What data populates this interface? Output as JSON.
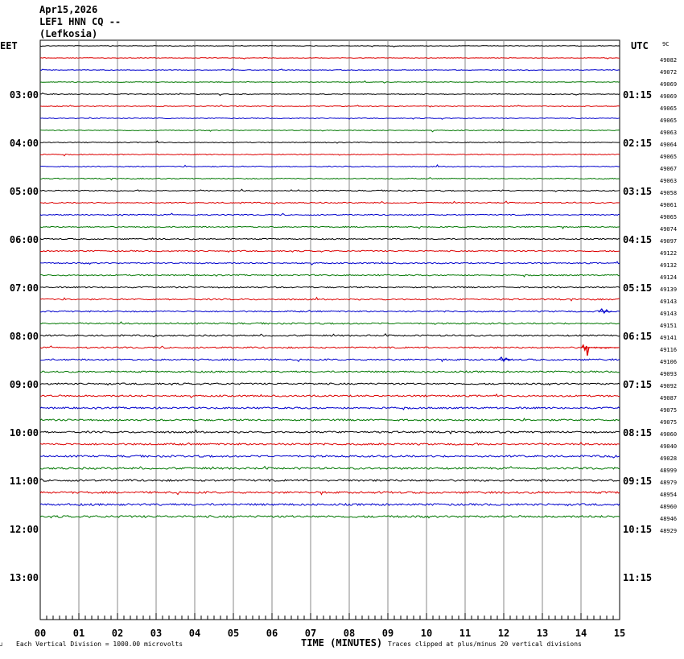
{
  "header": {
    "date": "Apr15,2026",
    "station": "LEF1 HNN CQ --",
    "location": "(Lefkosia)"
  },
  "left_zone_label": "EET",
  "right_zone_label": "UTC",
  "scale_header": "9C",
  "footer": {
    "scale_note": "Each Vertical Division = 1000.00 microvolts",
    "corner_mark": "┘",
    "clip_note": "Traces clipped at plus/minus 20 vertical divisions"
  },
  "chart_data": {
    "type": "line",
    "title": "",
    "xlabel": "TIME (MINUTES)",
    "ylabel": "",
    "xlim": [
      0,
      15
    ],
    "x_tick_labels": [
      "00",
      "01",
      "02",
      "03",
      "04",
      "05",
      "06",
      "07",
      "08",
      "09",
      "10",
      "11",
      "12",
      "13",
      "14",
      "15"
    ],
    "left_time_labels": [
      "03:00",
      "04:00",
      "05:00",
      "06:00",
      "07:00",
      "08:00",
      "09:00",
      "10:00",
      "11:00",
      "12:00",
      "13:00"
    ],
    "right_time_labels": [
      "01:15",
      "02:15",
      "03:15",
      "04:15",
      "05:15",
      "06:15",
      "07:15",
      "08:15",
      "09:15",
      "10:15",
      "11:15"
    ],
    "trace_colors": [
      "#000000",
      "#dd0000",
      "#0000cc",
      "#007700"
    ],
    "trace_values": [
      49082,
      49072,
      49069,
      49069,
      49065,
      49065,
      49063,
      49064,
      49065,
      49067,
      49063,
      49058,
      49061,
      49065,
      49074,
      49097,
      49122,
      49132,
      49124,
      49139,
      49143,
      49143,
      49151,
      49141,
      49116,
      49106,
      49093,
      49092,
      49087,
      49075,
      49075,
      49060,
      49040,
      49028,
      48999,
      48979,
      48954,
      48960,
      48946,
      48929
    ],
    "events": [
      {
        "trace_index": 25,
        "minute": 14.1,
        "note": "spike"
      },
      {
        "trace_index": 26,
        "minute": 12.0,
        "note": "wiggle"
      },
      {
        "trace_index": 22,
        "minute": 14.6,
        "note": "wiggle"
      }
    ]
  }
}
